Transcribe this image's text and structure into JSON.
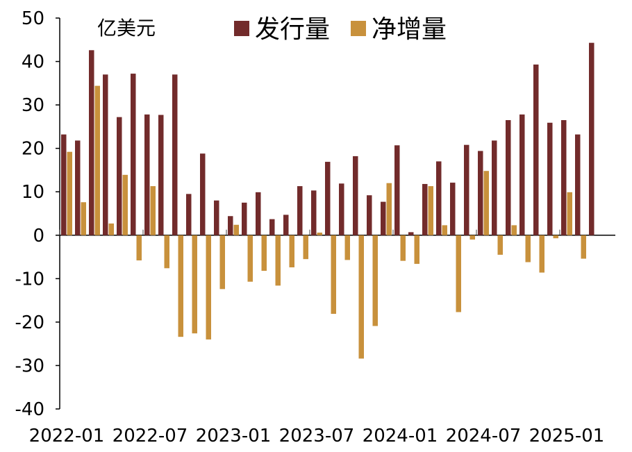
{
  "chart_data": {
    "type": "bar",
    "title": "",
    "unit_label": "亿美元",
    "xlabel": "",
    "ylabel": "",
    "ylim": [
      -40,
      50
    ],
    "yticks": [
      50,
      40,
      30,
      20,
      10,
      0,
      -10,
      -20,
      -30,
      -40
    ],
    "categories": [
      "2022-01",
      "2022-02",
      "2022-03",
      "2022-04",
      "2022-05",
      "2022-06",
      "2022-07",
      "2022-08",
      "2022-09",
      "2022-10",
      "2022-11",
      "2022-12",
      "2023-01",
      "2023-02",
      "2023-03",
      "2023-04",
      "2023-05",
      "2023-06",
      "2023-07",
      "2023-08",
      "2023-09",
      "2023-10",
      "2023-11",
      "2023-12",
      "2024-01",
      "2024-02",
      "2024-03",
      "2024-04",
      "2024-05",
      "2024-06",
      "2024-07",
      "2024-08",
      "2024-09",
      "2024-10",
      "2024-11",
      "2024-12",
      "2025-01",
      "2025-02",
      "2025-03",
      "2025-04"
    ],
    "x_tick_labels": [
      "2022-01",
      "2022-07",
      "2023-01",
      "2023-07",
      "2024-01",
      "2024-07",
      "2025-01"
    ],
    "x_tick_every": 6,
    "legend_position": "top",
    "series": [
      {
        "name": "发行量",
        "color": "#722b2b",
        "values": [
          23.2,
          21.8,
          42.6,
          37.0,
          27.2,
          37.2,
          27.8,
          27.7,
          37.0,
          9.5,
          18.8,
          8.0,
          4.4,
          7.5,
          9.9,
          3.7,
          4.7,
          11.3,
          10.3,
          16.9,
          11.9,
          18.2,
          9.2,
          7.7,
          20.7,
          0.7,
          11.8,
          17.0,
          12.1,
          20.8,
          19.4,
          21.8,
          26.5,
          27.8,
          39.3,
          25.9,
          26.5,
          23.2,
          44.3,
          0
        ]
      },
      {
        "name": "净增量",
        "color": "#c8913c",
        "values": [
          19.2,
          7.6,
          34.4,
          2.7,
          13.9,
          -5.8,
          11.3,
          -7.6,
          -23.4,
          -22.6,
          -24.0,
          -12.4,
          2.4,
          -10.7,
          -8.2,
          -11.6,
          -7.4,
          -5.5,
          0.6,
          -18.1,
          -5.7,
          -28.4,
          -20.9,
          12.0,
          -5.9,
          -6.6,
          11.3,
          2.3,
          -17.7,
          -1.0,
          14.8,
          -4.5,
          2.3,
          -6.2,
          -8.6,
          -0.7,
          9.9,
          -5.4,
          0,
          0
        ]
      }
    ]
  }
}
